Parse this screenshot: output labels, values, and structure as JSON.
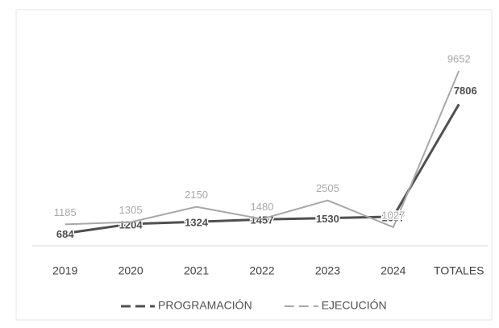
{
  "chart_data": {
    "type": "line",
    "categories": [
      "2019",
      "2020",
      "2021",
      "2022",
      "2023",
      "2024",
      "TOTALES"
    ],
    "series": [
      {
        "name": "PROGRAMACIÓN",
        "color": "#505050",
        "values": [
          684,
          1204,
          1324,
          1457,
          1530,
          1607,
          7806
        ]
      },
      {
        "name": "EJECUCIÓN",
        "color": "#a8a8a8",
        "values": [
          1185,
          1305,
          2150,
          1480,
          2505,
          1027,
          9652
        ]
      }
    ],
    "ylim": [
      0,
      10000
    ],
    "legend": "bottom"
  }
}
